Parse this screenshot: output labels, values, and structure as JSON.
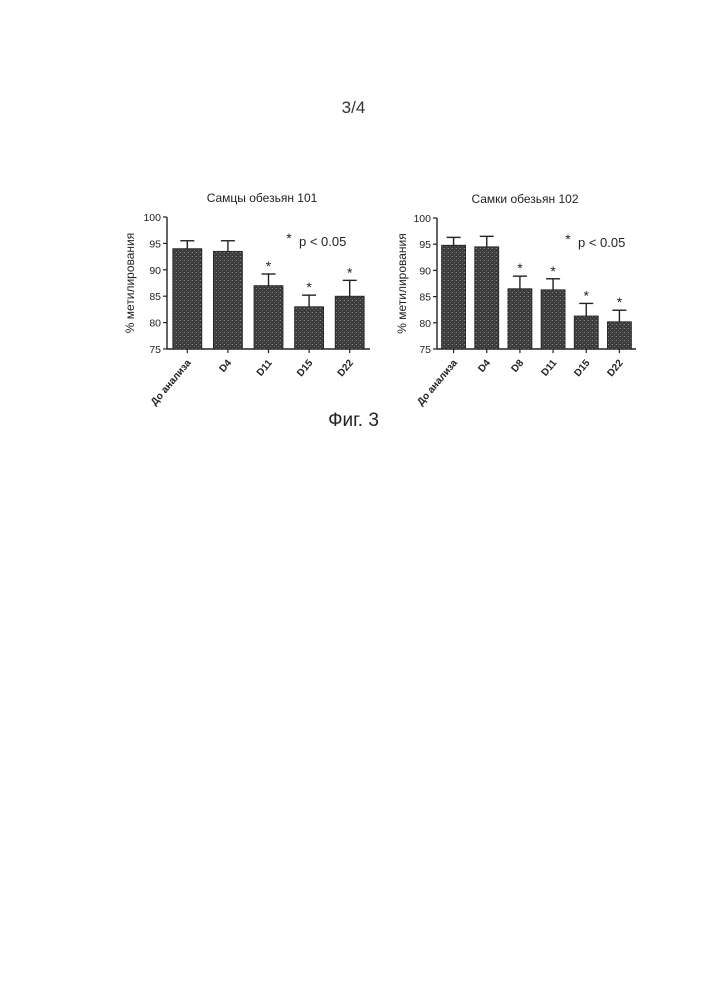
{
  "page": {
    "number": "3/4"
  },
  "figure": {
    "caption": "Фиг. 3"
  },
  "colors": {
    "bar": "#3a3a3a",
    "axis": "#222222"
  },
  "chart_data": [
    {
      "type": "bar",
      "title": "Самцы обезьян 101",
      "ylabel": "% метилирования",
      "ylim": [
        75,
        100
      ],
      "yticks": [
        "75",
        "80",
        "85",
        "90",
        "95",
        "100"
      ],
      "categories": [
        "До анализа",
        "D4",
        "D11",
        "D15",
        "D22"
      ],
      "values": [
        94,
        93.5,
        87,
        83,
        85
      ],
      "errors": [
        1.5,
        2,
        2.2,
        2.2,
        3
      ],
      "significant": [
        false,
        false,
        true,
        true,
        true
      ],
      "significance_marker": "*",
      "annotation": {
        "marker": "*",
        "text": "p < 0.05"
      }
    },
    {
      "type": "bar",
      "title": "Самки обезьян 102",
      "ylabel": "% метилирования",
      "ylim": [
        75,
        100
      ],
      "yticks": [
        "75",
        "80",
        "85",
        "90",
        "95",
        "100"
      ],
      "categories": [
        "До анализа",
        "D4",
        "D8",
        "D11",
        "D15",
        "D22"
      ],
      "values": [
        94.8,
        94.5,
        86.5,
        86.3,
        81.3,
        80.2
      ],
      "errors": [
        1.5,
        2,
        2.4,
        2.1,
        2.4,
        2.2
      ],
      "significant": [
        false,
        false,
        true,
        true,
        true,
        true
      ],
      "significance_marker": "*",
      "annotation": {
        "marker": "*",
        "text": "p < 0.05"
      }
    }
  ]
}
